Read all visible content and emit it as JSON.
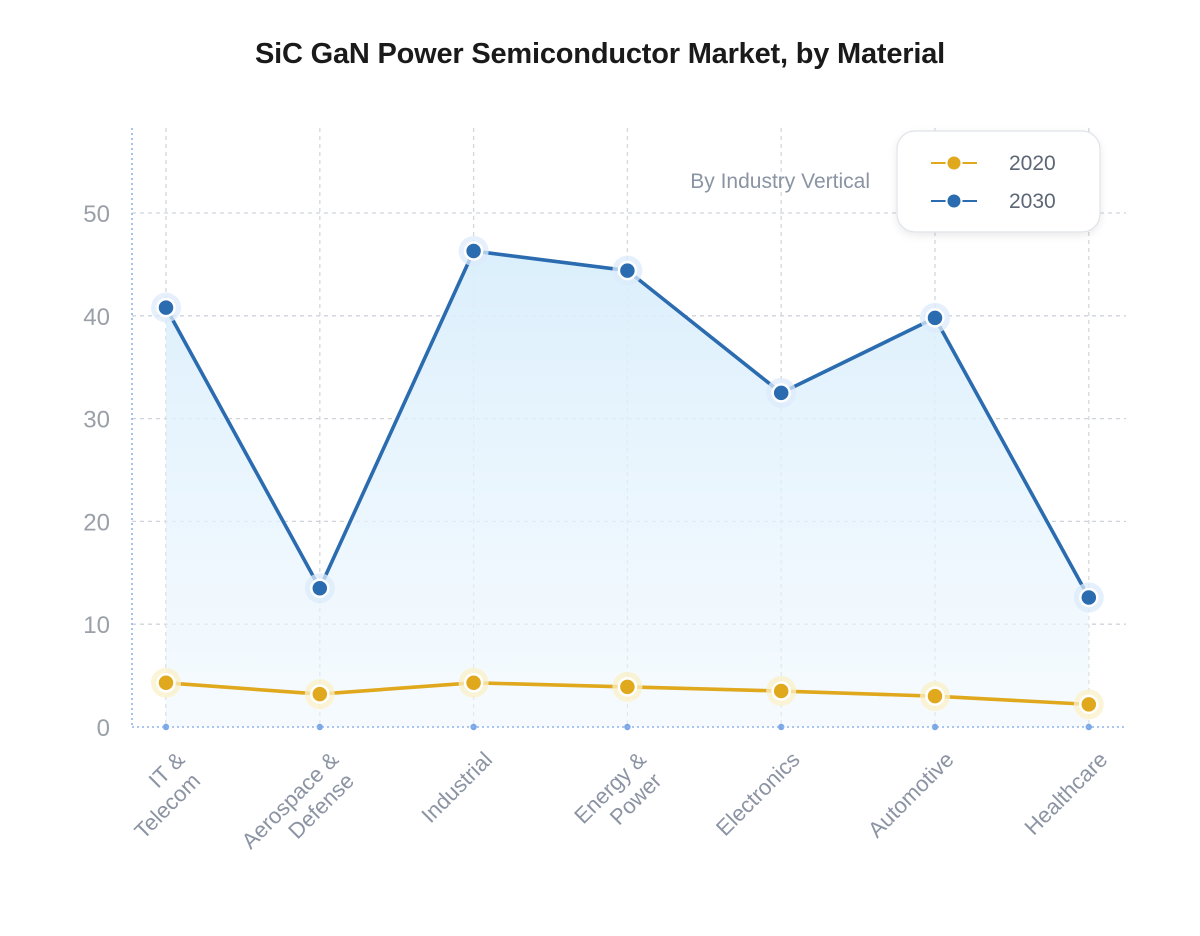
{
  "chart_data": {
    "type": "line",
    "title": "SiC GaN Power Semiconductor Market, by Material",
    "subtitle": "By Industry Vertical",
    "categories": [
      "IT & Telecom",
      "Aerospace & Defense",
      "Industrial",
      "Energy & Power",
      "Electronics",
      "Automotive",
      "Healthcare"
    ],
    "category_lines": [
      [
        "IT &",
        "Telecom"
      ],
      [
        "Aerospace &",
        "Defense"
      ],
      [
        "Industrial"
      ],
      [
        "Energy &",
        "Power"
      ],
      [
        "Electronics"
      ],
      [
        "Automotive"
      ],
      [
        "Healthcare"
      ]
    ],
    "series": [
      {
        "name": "2020",
        "color": "#e0a81c",
        "values": [
          4.3,
          3.2,
          4.3,
          3.9,
          3.5,
          3.0,
          2.2
        ],
        "area": false
      },
      {
        "name": "2030",
        "color": "#2b6cb0",
        "values": [
          40.8,
          13.5,
          46.3,
          44.4,
          32.5,
          39.8,
          12.6
        ],
        "area": true
      }
    ],
    "ylim": [
      0,
      55
    ],
    "yticks": [
      0,
      10,
      20,
      30,
      40,
      50
    ],
    "grid": true,
    "legend_position": "top-right"
  }
}
